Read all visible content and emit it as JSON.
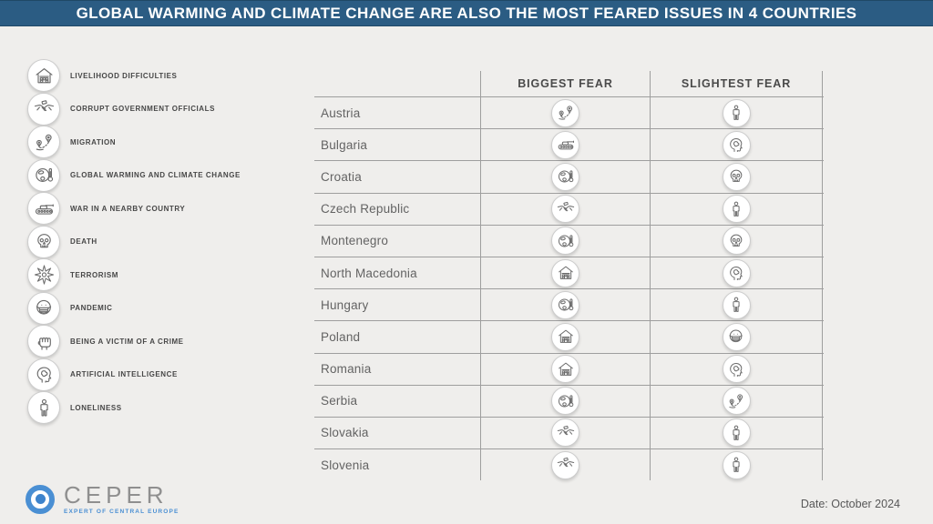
{
  "title": "GLOBAL WARMING AND CLIMATE CHANGE ARE ALSO THE MOST FEARED ISSUES IN 4 COUNTRIES",
  "colors": {
    "header_bg": "#2b5c83",
    "accent_blue": "#4a8fd3",
    "table_line": "#9e9e9e",
    "icon_stroke": "#6b6b6b",
    "page_bg": "#efeeec"
  },
  "legend": {
    "items": [
      {
        "key": "livelihood",
        "label": "LIVELIHOOD DIFFICULTIES",
        "icon": "house-goods-icon"
      },
      {
        "key": "corruption",
        "label": "CORRUPT GOVERNMENT OFFICIALS",
        "icon": "handshake-money-icon"
      },
      {
        "key": "migration",
        "label": "MIGRATION",
        "icon": "map-pins-route-icon"
      },
      {
        "key": "warming",
        "label": "GLOBAL WARMING AND CLIMATE CHANGE",
        "icon": "globe-thermometer-icon"
      },
      {
        "key": "war",
        "label": "WAR IN A NEARBY COUNTRY",
        "icon": "tank-icon"
      },
      {
        "key": "death",
        "label": "DEATH",
        "icon": "skull-icon"
      },
      {
        "key": "terrorism",
        "label": "TERRORISM",
        "icon": "explosion-burst-icon"
      },
      {
        "key": "pandemic",
        "label": "PANDEMIC",
        "icon": "face-mask-icon"
      },
      {
        "key": "crime",
        "label": "BEING A VICTIM OF A CRIME",
        "icon": "fist-icon"
      },
      {
        "key": "ai",
        "label": "ARTIFICIAL INTELLIGENCE",
        "icon": "head-circuit-icon"
      },
      {
        "key": "loneliness",
        "label": "LONELINESS",
        "icon": "lone-person-icon"
      }
    ]
  },
  "table": {
    "columns": [
      "",
      "BIGGEST FEAR",
      "SLIGHTEST FEAR"
    ],
    "rows": [
      {
        "country": "Austria",
        "biggest": "migration",
        "slightest": "loneliness"
      },
      {
        "country": "Bulgaria",
        "biggest": "war",
        "slightest": "ai"
      },
      {
        "country": "Croatia",
        "biggest": "warming",
        "slightest": "death"
      },
      {
        "country": "Czech Republic",
        "biggest": "corruption",
        "slightest": "loneliness"
      },
      {
        "country": "Montenegro",
        "biggest": "warming",
        "slightest": "death"
      },
      {
        "country": "North Macedonia",
        "biggest": "livelihood",
        "slightest": "ai"
      },
      {
        "country": "Hungary",
        "biggest": "warming",
        "slightest": "loneliness"
      },
      {
        "country": "Poland",
        "biggest": "livelihood",
        "slightest": "pandemic"
      },
      {
        "country": "Romania",
        "biggest": "livelihood",
        "slightest": "ai"
      },
      {
        "country": "Serbia",
        "biggest": "warming",
        "slightest": "migration"
      },
      {
        "country": "Slovakia",
        "biggest": "corruption",
        "slightest": "loneliness"
      },
      {
        "country": "Slovenia",
        "biggest": "corruption",
        "slightest": "loneliness"
      }
    ]
  },
  "footer": {
    "logo_text": "CEPER",
    "logo_tagline": "EXPERT OF CENTRAL EUROPE",
    "date": "Date: October 2024"
  }
}
